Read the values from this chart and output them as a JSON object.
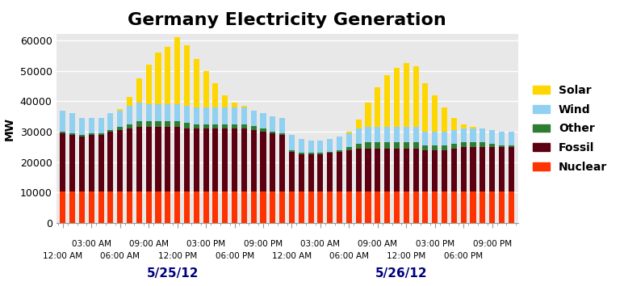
{
  "title": "Germany Electricity Generation",
  "ylabel": "MW",
  "colors": {
    "Nuclear": "#FF3300",
    "Fossil": "#5C0011",
    "Other": "#2E7D32",
    "Wind": "#90D0F0",
    "Solar": "#FFD700"
  },
  "legend_order": [
    "Solar",
    "Wind",
    "Other",
    "Fossil",
    "Nuclear"
  ],
  "nuclear": [
    10500,
    10500,
    10500,
    10500,
    10500,
    10500,
    10500,
    10500,
    10500,
    10500,
    10500,
    10500,
    10500,
    10500,
    10500,
    10500,
    10500,
    10500,
    10500,
    10500,
    10500,
    10500,
    10500,
    10500,
    10500,
    10500,
    10500,
    10500,
    10500,
    10500,
    10500,
    10500,
    10500,
    10500,
    10500,
    10500,
    10500,
    10500,
    10500,
    10500,
    10500,
    10500,
    10500,
    10500,
    10500,
    10500,
    10500,
    10500
  ],
  "fossil": [
    19000,
    18500,
    18000,
    18500,
    18500,
    19500,
    20000,
    20500,
    21000,
    21000,
    21000,
    21000,
    21000,
    20500,
    20500,
    20500,
    20500,
    20500,
    20500,
    20500,
    20000,
    19500,
    19000,
    18500,
    13000,
    12000,
    12000,
    12000,
    12500,
    13000,
    13500,
    14000,
    14000,
    14000,
    14000,
    14000,
    14000,
    14000,
    13500,
    13500,
    13500,
    14000,
    14500,
    14500,
    14500,
    14500,
    14500,
    14500
  ],
  "other": [
    500,
    500,
    500,
    500,
    500,
    500,
    1000,
    1500,
    2000,
    2000,
    2000,
    2000,
    2000,
    2000,
    1500,
    1500,
    1500,
    1500,
    1500,
    1500,
    1500,
    1000,
    500,
    500,
    500,
    500,
    500,
    500,
    500,
    500,
    1000,
    1500,
    2000,
    2000,
    2000,
    2000,
    2000,
    2000,
    1500,
    1500,
    1500,
    1500,
    1500,
    1500,
    1500,
    1000,
    500,
    500
  ],
  "wind": [
    7000,
    6500,
    5500,
    5000,
    5000,
    5500,
    5500,
    6000,
    6000,
    5500,
    5500,
    5500,
    5500,
    5500,
    5500,
    5500,
    5500,
    5500,
    5500,
    5500,
    5000,
    5000,
    5000,
    5000,
    5000,
    4500,
    4000,
    4000,
    4000,
    4500,
    4500,
    5000,
    5000,
    5000,
    5000,
    5000,
    5000,
    5000,
    4500,
    4500,
    4500,
    4500,
    4500,
    4500,
    4500,
    4500,
    4500,
    4500
  ],
  "solar": [
    0,
    0,
    0,
    0,
    0,
    0,
    500,
    3000,
    8000,
    13000,
    17000,
    19000,
    22000,
    20000,
    16000,
    12000,
    8000,
    4000,
    1500,
    500,
    0,
    0,
    0,
    0,
    0,
    0,
    0,
    0,
    0,
    0,
    500,
    3000,
    8000,
    13000,
    17000,
    19500,
    21000,
    20000,
    16000,
    12000,
    8000,
    4000,
    1500,
    500,
    0,
    0,
    0,
    0
  ],
  "ylim": [
    0,
    62000
  ],
  "yticks": [
    0,
    10000,
    20000,
    30000,
    40000,
    50000,
    60000
  ],
  "background_color": "#FFFFFF",
  "plot_bg_color": "#E8E8E8",
  "grid_color": "#FFFFFF"
}
